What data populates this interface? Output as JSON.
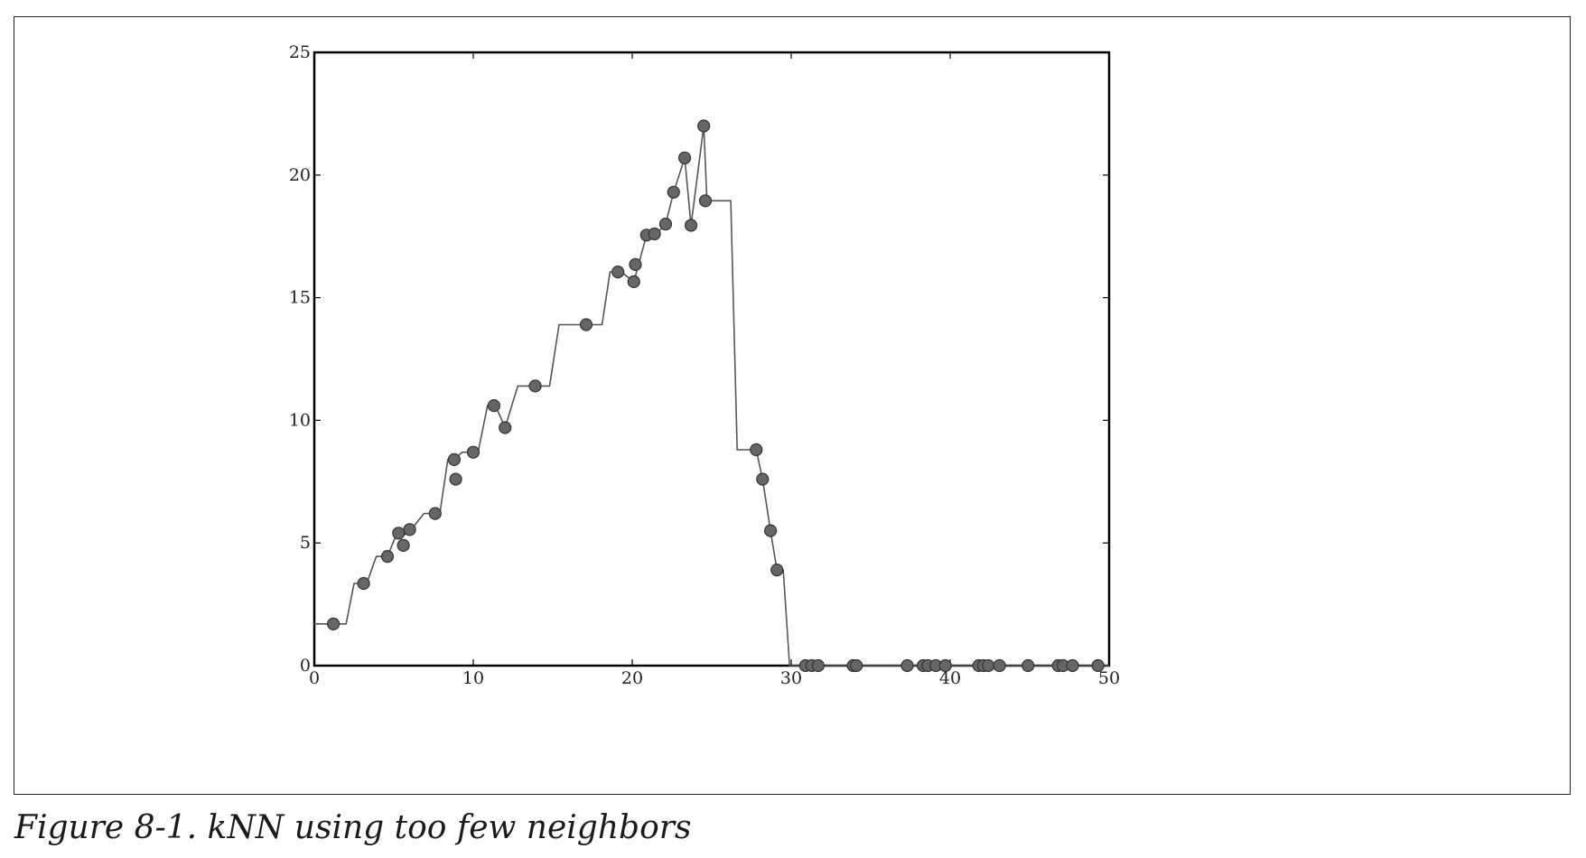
{
  "figure": {
    "caption": "Figure 8-1. kNN using too few neighbors"
  },
  "chart_data": {
    "type": "line",
    "title": "",
    "xlabel": "",
    "ylabel": "",
    "xlim": [
      0,
      50
    ],
    "ylim": [
      0,
      25
    ],
    "x_ticks": [
      0,
      10,
      20,
      30,
      40,
      50
    ],
    "y_ticks": [
      0,
      5,
      10,
      15,
      20,
      25
    ],
    "grid": false,
    "legend": "none",
    "colors": {
      "line": "#555555",
      "marker_fill": "#666666",
      "marker_edge": "#333333",
      "axes": "#000000"
    },
    "series": [
      {
        "kind": "scatter",
        "points": [
          [
            1.2,
            1.7
          ],
          [
            3.1,
            3.35
          ],
          [
            4.6,
            4.45
          ],
          [
            5.3,
            5.4
          ],
          [
            5.6,
            4.9
          ],
          [
            6.0,
            5.55
          ],
          [
            7.6,
            6.2
          ],
          [
            8.8,
            8.4
          ],
          [
            8.9,
            7.6
          ],
          [
            10.0,
            8.7
          ],
          [
            11.3,
            10.6
          ],
          [
            12.0,
            9.7
          ],
          [
            13.9,
            11.4
          ],
          [
            17.1,
            13.9
          ],
          [
            19.1,
            16.05
          ],
          [
            20.1,
            15.65
          ],
          [
            20.2,
            16.35
          ],
          [
            20.9,
            17.55
          ],
          [
            21.4,
            17.6
          ],
          [
            22.1,
            18.0
          ],
          [
            22.6,
            19.3
          ],
          [
            23.3,
            20.7
          ],
          [
            23.7,
            17.95
          ],
          [
            24.5,
            22.0
          ],
          [
            24.6,
            18.95
          ],
          [
            27.8,
            8.8
          ],
          [
            28.2,
            7.6
          ],
          [
            28.7,
            5.5
          ],
          [
            29.1,
            3.9
          ],
          [
            30.9,
            0
          ],
          [
            31.3,
            0
          ],
          [
            31.7,
            0
          ],
          [
            33.9,
            0
          ],
          [
            34.1,
            0
          ],
          [
            37.3,
            0
          ],
          [
            38.3,
            0
          ],
          [
            38.6,
            0
          ],
          [
            39.1,
            0
          ],
          [
            39.7,
            0
          ],
          [
            41.8,
            0
          ],
          [
            42.1,
            0
          ],
          [
            42.4,
            0
          ],
          [
            43.1,
            0
          ],
          [
            44.9,
            0
          ],
          [
            46.8,
            0
          ],
          [
            47.1,
            0
          ],
          [
            47.7,
            0
          ],
          [
            49.3,
            0
          ]
        ]
      },
      {
        "kind": "line",
        "points": [
          [
            0,
            1.7
          ],
          [
            2.0,
            1.7
          ],
          [
            2.5,
            3.35
          ],
          [
            3.3,
            3.35
          ],
          [
            3.9,
            4.45
          ],
          [
            4.6,
            4.45
          ],
          [
            5.2,
            5.4
          ],
          [
            5.5,
            5.25
          ],
          [
            6.1,
            5.55
          ],
          [
            6.9,
            6.2
          ],
          [
            7.9,
            6.2
          ],
          [
            8.4,
            8.4
          ],
          [
            8.8,
            8.4
          ],
          [
            9.3,
            8.7
          ],
          [
            10.3,
            8.7
          ],
          [
            10.9,
            10.6
          ],
          [
            11.4,
            10.6
          ],
          [
            12.0,
            9.7
          ],
          [
            12.8,
            11.4
          ],
          [
            14.8,
            11.4
          ],
          [
            15.4,
            13.9
          ],
          [
            18.1,
            13.9
          ],
          [
            18.6,
            16.05
          ],
          [
            19.3,
            16.05
          ],
          [
            20.1,
            15.65
          ],
          [
            20.4,
            16.35
          ],
          [
            20.9,
            17.55
          ],
          [
            21.5,
            17.6
          ],
          [
            22.1,
            18.0
          ],
          [
            22.6,
            19.3
          ],
          [
            23.3,
            20.7
          ],
          [
            23.7,
            17.95
          ],
          [
            24.5,
            22.0
          ],
          [
            24.7,
            18.95
          ],
          [
            25.0,
            18.95
          ],
          [
            26.2,
            18.95
          ],
          [
            26.6,
            8.8
          ],
          [
            27.8,
            8.8
          ],
          [
            28.2,
            7.6
          ],
          [
            28.7,
            5.5
          ],
          [
            29.1,
            3.9
          ],
          [
            29.5,
            3.9
          ],
          [
            29.9,
            0
          ],
          [
            50,
            0
          ]
        ]
      }
    ]
  }
}
